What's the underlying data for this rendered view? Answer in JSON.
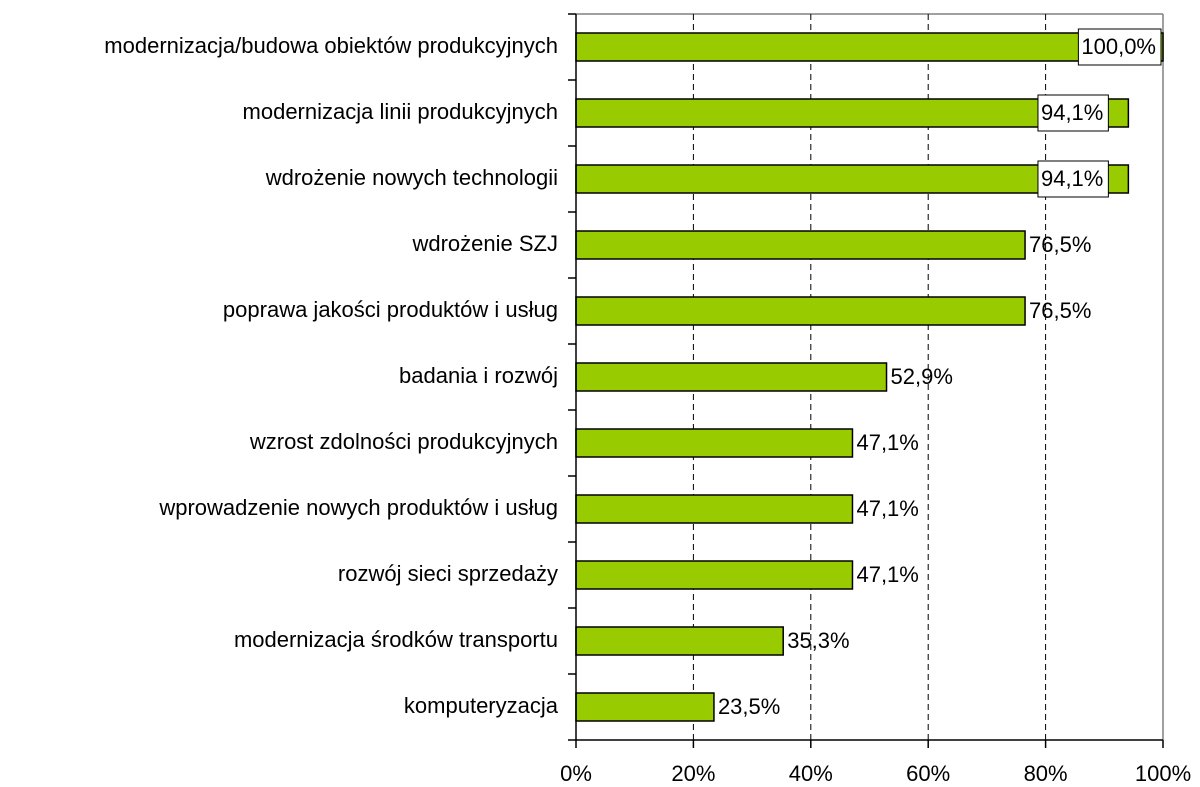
{
  "chart_data": {
    "type": "barh",
    "categories": [
      "modernizacja/budowa obiektów produkcyjnych",
      "modernizacja linii produkcyjnych",
      "wdrożenie nowych technologii",
      "wdrożenie SZJ",
      "poprawa jakości produktów i usług",
      "badania i rozwój",
      "wzrost zdolności produkcyjnych",
      "wprowadzenie nowych produktów i usług",
      "rozwój sieci sprzedaży",
      "modernizacja środków transportu",
      "komputeryzacja"
    ],
    "values": [
      100,
      94.1,
      94.1,
      76.5,
      76.5,
      52.9,
      47.1,
      47.1,
      47.1,
      35.3,
      23.5
    ],
    "value_labels": [
      "100,0%",
      "94,1%",
      "94,1%",
      "76,5%",
      "76,5%",
      "52,9%",
      "47,1%",
      "47,1%",
      "47,1%",
      "35,3%",
      "23,5%"
    ],
    "color": "#99cc00",
    "xlim": [
      0,
      100
    ],
    "xticks": [
      {
        "value": 0,
        "label": "0%"
      },
      {
        "value": 20,
        "label": "20%"
      },
      {
        "value": 40,
        "label": "40%"
      },
      {
        "value": 60,
        "label": "60%"
      },
      {
        "value": 80,
        "label": "80%"
      },
      {
        "value": 100,
        "label": "100%"
      }
    ],
    "grid": true
  }
}
